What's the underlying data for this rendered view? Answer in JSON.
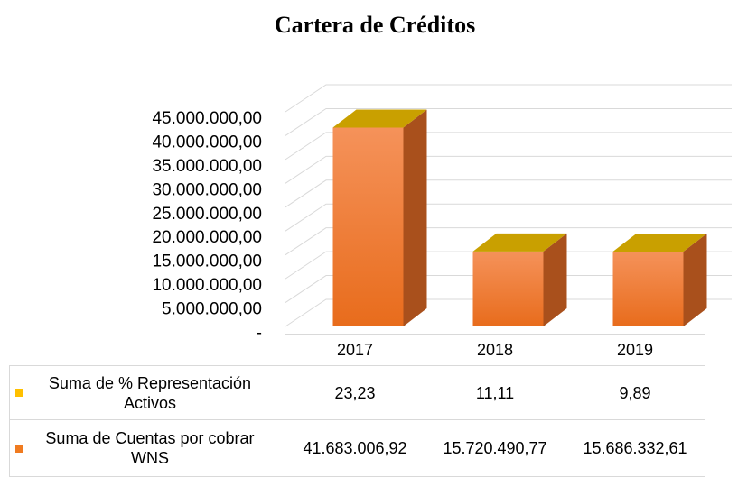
{
  "chart_data": {
    "type": "bar",
    "stacked": true,
    "three_d": true,
    "title": "Cartera de Créditos",
    "categories": [
      "2017",
      "2018",
      "2019"
    ],
    "series": [
      {
        "name": "Suma de % Representación Activos",
        "color": "#ffc000",
        "values": [
          23.23,
          11.11,
          9.89
        ],
        "value_labels": [
          "23,23",
          "11,11",
          "9,89"
        ]
      },
      {
        "name": "Suma de Cuentas por cobrar WNS",
        "color": "#f07b20",
        "values": [
          41683006.92,
          15720490.77,
          15686332.61
        ],
        "value_labels": [
          "41.683.006,92",
          "15.720.490,77",
          "15.686.332,61"
        ]
      }
    ],
    "ylim": [
      0,
      45000000
    ],
    "yticks": [
      {
        "value": 0,
        "label": "-"
      },
      {
        "value": 5000000,
        "label": "5.000.000,00"
      },
      {
        "value": 10000000,
        "label": "10.000.000,00"
      },
      {
        "value": 15000000,
        "label": "15.000.000,00"
      },
      {
        "value": 20000000,
        "label": "20.000.000,00"
      },
      {
        "value": 25000000,
        "label": "25.000.000,00"
      },
      {
        "value": 30000000,
        "label": "30.000.000,00"
      },
      {
        "value": 35000000,
        "label": "35.000.000,00"
      },
      {
        "value": 40000000,
        "label": "40.000.000,00"
      },
      {
        "value": 45000000,
        "label": "45.000.000,00"
      }
    ],
    "grid": true,
    "data_table": true
  }
}
